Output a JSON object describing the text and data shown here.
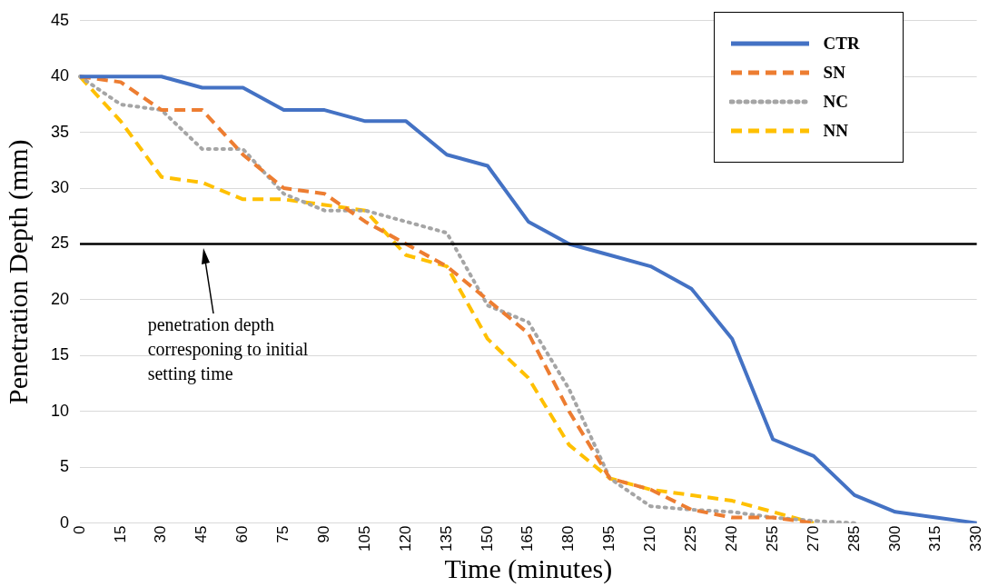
{
  "chart_data": {
    "type": "line",
    "xlabel": "Time (minutes)",
    "ylabel": "Penetration Depth (mm)",
    "categories": [
      "0",
      "15",
      "30",
      "45",
      "60",
      "75",
      "90",
      "105",
      "120",
      "135",
      "150",
      "165",
      "180",
      "195",
      "210",
      "225",
      "240",
      "255",
      "270",
      "285",
      "300",
      "315",
      "330"
    ],
    "ylim": [
      0,
      45
    ],
    "yticks": [
      0,
      5,
      10,
      15,
      20,
      25,
      30,
      35,
      40,
      45
    ],
    "grid": "y",
    "legend": "top right",
    "marker": "none",
    "series": [
      {
        "name": "CTR",
        "color": "#4472c4",
        "line_style": "solid",
        "values": [
          40,
          40,
          40,
          39,
          39,
          37,
          37,
          36,
          36,
          33,
          32,
          27,
          25,
          24,
          23,
          21,
          16.5,
          7.5,
          6,
          2.5,
          1,
          0.5,
          0
        ]
      },
      {
        "name": "SN",
        "color": "#ed7d31",
        "line_style": "dashed",
        "values": [
          40,
          39.5,
          37,
          37,
          33,
          30,
          29.5,
          27,
          25,
          23,
          20,
          17,
          10,
          4,
          3,
          1.2,
          0.5,
          0.5,
          0,
          null,
          null,
          null,
          null
        ]
      },
      {
        "name": "NC",
        "color": "#a5a5a5",
        "line_style": "dotted",
        "values": [
          40,
          37.5,
          37,
          33.5,
          33.5,
          29.5,
          28,
          28,
          27,
          26,
          19.5,
          18,
          12,
          4,
          1.5,
          1.2,
          1,
          0.5,
          0.2,
          0,
          null,
          null,
          null
        ]
      },
      {
        "name": "NN",
        "color": "#ffc000",
        "line_style": "dashed",
        "values": [
          40,
          36,
          31,
          30.5,
          29,
          29,
          28.5,
          28,
          24,
          23,
          16.5,
          13,
          7,
          4,
          3,
          2.5,
          2,
          1,
          0,
          null,
          null,
          null,
          null
        ]
      }
    ],
    "ref_lines": [
      {
        "axis": "y",
        "value": 25,
        "color": "#000000",
        "line_style": "solid"
      }
    ],
    "annotations": [
      "penetration depth corresponing to initial setting time"
    ]
  }
}
